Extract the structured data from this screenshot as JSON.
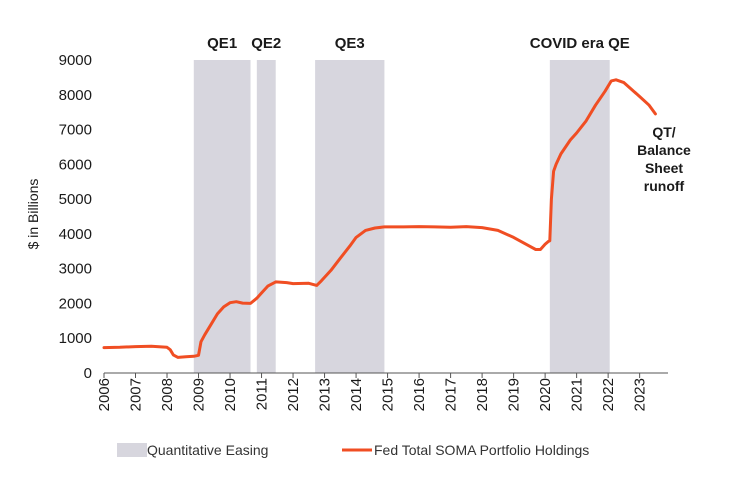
{
  "chart_data": {
    "type": "line",
    "ylabel": "$ in Billions",
    "ylim": [
      0,
      9000
    ],
    "yticks": [
      0,
      1000,
      2000,
      3000,
      4000,
      5000,
      6000,
      7000,
      8000,
      9000
    ],
    "xlim": [
      2006,
      2023.9
    ],
    "xticks": [
      2006,
      2007,
      2008,
      2009,
      2010,
      2011,
      2012,
      2013,
      2014,
      2015,
      2016,
      2017,
      2018,
      2019,
      2020,
      2021,
      2022,
      2023
    ],
    "qe_periods": [
      {
        "label": "QE1",
        "start": 2008.85,
        "end": 2010.65
      },
      {
        "label": "QE2",
        "start": 2010.85,
        "end": 2011.45
      },
      {
        "label": "QE3",
        "start": 2012.7,
        "end": 2014.9
      },
      {
        "label": "COVID era QE",
        "start": 2020.15,
        "end": 2022.05
      }
    ],
    "annotation": [
      "QT/",
      "Balance",
      "Sheet",
      "runoff"
    ],
    "legend": [
      "Quantitative Easing",
      "Fed Total SOMA Portfolio Holdings"
    ],
    "colors": {
      "line": "#f04e23",
      "shade": "#d7d6de"
    },
    "series": [
      {
        "name": "Fed Total SOMA Portfolio Holdings",
        "x": [
          2006.0,
          2006.5,
          2007.0,
          2007.5,
          2008.0,
          2008.1,
          2008.2,
          2008.35,
          2008.6,
          2008.85,
          2009.0,
          2009.08,
          2009.2,
          2009.4,
          2009.6,
          2009.8,
          2010.0,
          2010.2,
          2010.4,
          2010.65,
          2010.85,
          2011.0,
          2011.2,
          2011.45,
          2011.8,
          2012.0,
          2012.5,
          2012.75,
          2012.9,
          2013.2,
          2013.5,
          2013.8,
          2014.0,
          2014.3,
          2014.6,
          2014.9,
          2015.5,
          2016.0,
          2016.5,
          2017.0,
          2017.5,
          2018.0,
          2018.5,
          2019.0,
          2019.5,
          2019.7,
          2019.85,
          2020.0,
          2020.1,
          2020.15,
          2020.2,
          2020.27,
          2020.35,
          2020.5,
          2020.8,
          2021.0,
          2021.3,
          2021.6,
          2021.9,
          2022.1,
          2022.25,
          2022.5,
          2022.75,
          2023.0,
          2023.3,
          2023.5
        ],
        "values": [
          730,
          740,
          760,
          770,
          740,
          670,
          520,
          450,
          470,
          480,
          510,
          900,
          1100,
          1400,
          1700,
          1900,
          2020,
          2050,
          2010,
          2000,
          2150,
          2300,
          2500,
          2620,
          2600,
          2570,
          2580,
          2520,
          2650,
          2950,
          3300,
          3650,
          3900,
          4100,
          4170,
          4200,
          4200,
          4210,
          4200,
          4190,
          4210,
          4180,
          4100,
          3900,
          3650,
          3550,
          3550,
          3700,
          3780,
          3800,
          5000,
          5800,
          6000,
          6300,
          6700,
          6900,
          7250,
          7700,
          8100,
          8400,
          8430,
          8350,
          8150,
          7950,
          7700,
          7450
        ]
      }
    ]
  }
}
